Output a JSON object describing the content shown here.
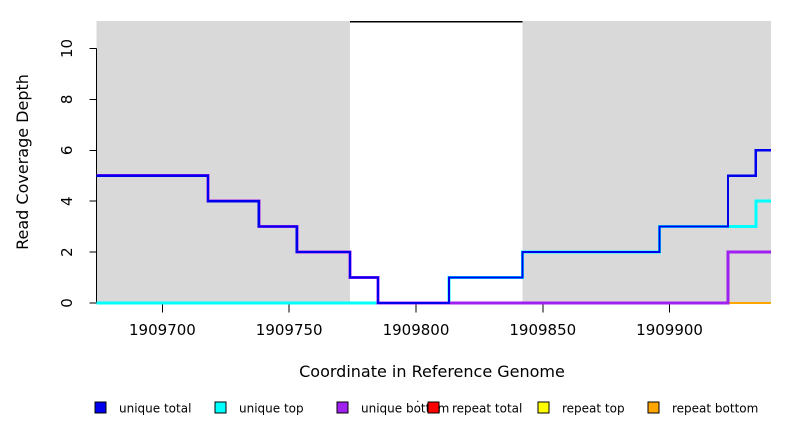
{
  "chart_data": {
    "type": "line",
    "subtype": "step-coverage-plot",
    "title": "",
    "xlabel": "Coordinate in Reference Genome",
    "ylabel": "Read Coverage Depth",
    "xlim": [
      1909674,
      1909940
    ],
    "ylim": [
      0,
      11.1
    ],
    "grid": false,
    "x_ticks": [
      {
        "value": 1909700,
        "label": "1909700"
      },
      {
        "value": 1909750,
        "label": "1909750"
      },
      {
        "value": 1909800,
        "label": "1909800"
      },
      {
        "value": 1909850,
        "label": "1909850"
      },
      {
        "value": 1909900,
        "label": "1909900"
      }
    ],
    "y_ticks": [
      {
        "value": 0,
        "label": "0"
      },
      {
        "value": 2,
        "label": "2"
      },
      {
        "value": 4,
        "label": "4"
      },
      {
        "value": 6,
        "label": "6"
      },
      {
        "value": 8,
        "label": "8"
      },
      {
        "value": 10,
        "label": "10"
      }
    ],
    "background_regions": [
      {
        "name": "unique-region-left",
        "from": 1909674,
        "to": 1909774,
        "color": "#D9D9D9"
      },
      {
        "name": "repeat-region",
        "from": 1909774,
        "to": 1909842,
        "color": "#FFFFFF"
      },
      {
        "name": "unique-region-right",
        "from": 1909842,
        "to": 1909940,
        "color": "#D9D9D9"
      }
    ],
    "repeat_region_marker": {
      "from": 1909774,
      "to": 1909842,
      "depth": 11.05,
      "color": "#000000"
    },
    "x_end": 1909940,
    "series": [
      {
        "name": "repeat total",
        "color": "#FF0000",
        "lw": 2,
        "steps": [
          [
            1909674,
            0
          ]
        ]
      },
      {
        "name": "repeat top",
        "color": "#FFFF00",
        "lw": 2,
        "steps": [
          [
            1909674,
            0
          ]
        ]
      },
      {
        "name": "repeat bottom",
        "color": "#FFA500",
        "lw": 2,
        "steps": [
          [
            1909674,
            0
          ]
        ]
      },
      {
        "name": "unique top",
        "color": "#00FFFF",
        "lw": 3,
        "steps": [
          [
            1909674,
            0
          ],
          [
            1909813,
            1
          ],
          [
            1909842,
            2
          ],
          [
            1909896,
            3
          ],
          [
            1909934,
            4
          ]
        ]
      },
      {
        "name": "unique bottom",
        "color": "#A020F0",
        "lw": 3,
        "steps": [
          [
            1909674,
            5
          ],
          [
            1909718,
            4
          ],
          [
            1909738,
            3
          ],
          [
            1909753,
            2
          ],
          [
            1909774,
            1
          ],
          [
            1909785,
            0
          ],
          [
            1909923,
            2
          ]
        ]
      },
      {
        "name": "unique total",
        "color": "#0000EE",
        "lw": 2.2,
        "steps": [
          [
            1909674,
            5
          ],
          [
            1909718,
            4
          ],
          [
            1909738,
            3
          ],
          [
            1909753,
            2
          ],
          [
            1909774,
            1
          ],
          [
            1909785,
            0
          ],
          [
            1909813,
            1
          ],
          [
            1909842,
            2
          ],
          [
            1909896,
            3
          ],
          [
            1909923,
            5
          ],
          [
            1909934,
            6
          ]
        ]
      }
    ],
    "legend": {
      "position": "bottom",
      "stray_mark": "·",
      "items": [
        {
          "label": "unique total",
          "color": "#0000EE"
        },
        {
          "label": "unique top",
          "color": "#00FFFF"
        },
        {
          "label": "unique bottom",
          "color": "#A020F0"
        },
        {
          "label": "repeat total",
          "color": "#FF0000"
        },
        {
          "label": "repeat top",
          "color": "#FFFF00"
        },
        {
          "label": "repeat bottom",
          "color": "#FFA500"
        }
      ]
    }
  }
}
